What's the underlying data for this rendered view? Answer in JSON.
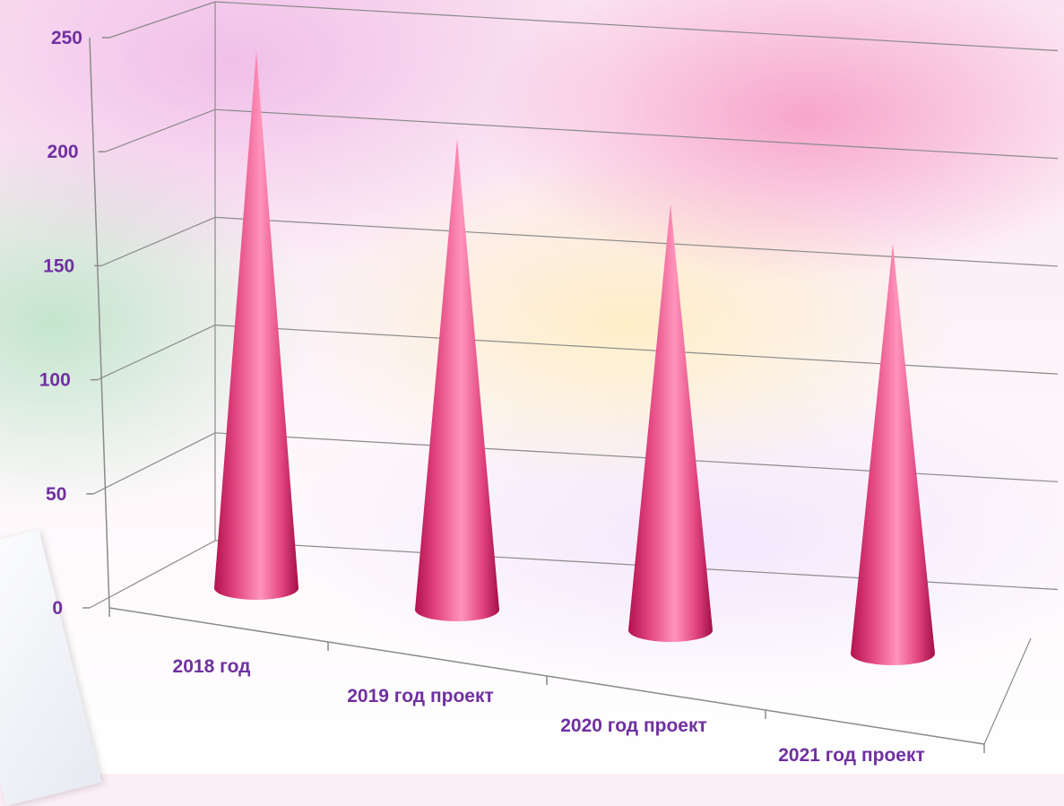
{
  "chart_data": {
    "type": "bar",
    "shape": "cone-3d",
    "title": "",
    "xlabel": "",
    "ylabel": "",
    "categories": [
      "2018 год",
      "2019 год проект",
      "2020 год проект",
      "2021 год проект"
    ],
    "values": [
      228,
      190,
      163,
      148
    ],
    "ylim": [
      0,
      250
    ],
    "yticks": [
      0,
      50,
      100,
      150,
      200,
      250
    ],
    "grid": true,
    "legend": "none",
    "colors": {
      "bar": "#e8457f",
      "labels": "#7030a0",
      "grid": "#8a8a8a"
    }
  }
}
